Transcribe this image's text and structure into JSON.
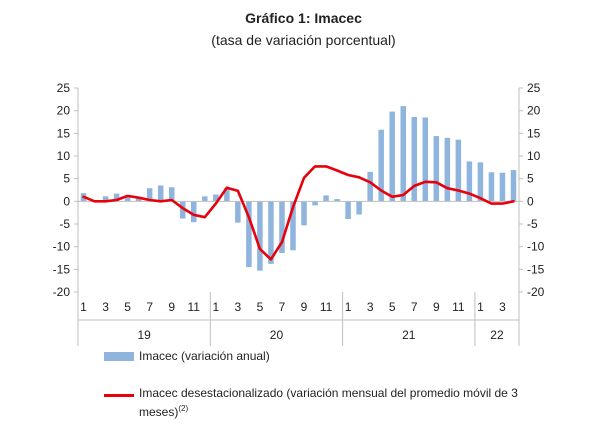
{
  "chart_data": {
    "type": "bar",
    "title": "Gráfico 1: Imacec",
    "subtitle": "(tasa de variación porcentual)",
    "ylim": [
      -20,
      25
    ],
    "yticks": [
      -20,
      -15,
      -10,
      -5,
      0,
      5,
      10,
      15,
      20,
      25
    ],
    "grid": false,
    "categories": [
      "1",
      "2",
      "3",
      "4",
      "5",
      "6",
      "7",
      "8",
      "9",
      "10",
      "11",
      "12",
      "1",
      "2",
      "3",
      "4",
      "5",
      "6",
      "7",
      "8",
      "9",
      "10",
      "11",
      "12",
      "1",
      "2",
      "3",
      "4",
      "5",
      "6",
      "7",
      "8",
      "9",
      "10",
      "11",
      "12",
      "1",
      "2",
      "3",
      "4"
    ],
    "tick_labels": [
      "1",
      "",
      "3",
      "",
      "5",
      "",
      "7",
      "",
      "9",
      "",
      "11",
      "",
      "1",
      "",
      "3",
      "",
      "5",
      "",
      "7",
      "",
      "9",
      "",
      "11",
      "",
      "1",
      "",
      "3",
      "",
      "5",
      "",
      "7",
      "",
      "9",
      "",
      "11",
      "",
      "1",
      "",
      "3",
      ""
    ],
    "year_labels": [
      {
        "label": "19",
        "start": 0,
        "end": 11
      },
      {
        "label": "20",
        "start": 12,
        "end": 23
      },
      {
        "label": "21",
        "start": 24,
        "end": 35
      },
      {
        "label": "22",
        "start": 36,
        "end": 39
      }
    ],
    "series": [
      {
        "name": "Imacec (variación anual)",
        "type": "bar",
        "color": "#8fb4dd",
        "values": [
          1.8,
          0.3,
          1.1,
          1.7,
          1.1,
          1.0,
          2.9,
          3.5,
          3.1,
          -3.8,
          -4.6,
          1.1,
          1.5,
          2.9,
          -4.7,
          -14.5,
          -15.3,
          -13.8,
          -11.4,
          -10.8,
          -5.3,
          -0.9,
          1.3,
          0.5,
          -3.9,
          -2.9,
          6.5,
          15.8,
          19.8,
          21.0,
          18.6,
          18.5,
          14.4,
          14.0,
          13.6,
          8.8,
          8.6,
          6.4,
          6.3,
          6.9
        ]
      },
      {
        "name": "Imacec desestacionalizado (variación mensual del promedio móvil de 3 meses)",
        "name_superscript": "(2)",
        "type": "line",
        "color": "#e8000b",
        "values": [
          1.0,
          0.0,
          0.0,
          0.3,
          1.2,
          0.8,
          0.3,
          0.0,
          0.3,
          -1.5,
          -3.0,
          -3.5,
          -0.5,
          3.0,
          2.3,
          -3.5,
          -10.5,
          -12.8,
          -9.0,
          -1.3,
          5.2,
          7.7,
          7.7,
          6.8,
          5.8,
          5.3,
          4.2,
          2.4,
          1.0,
          1.4,
          3.4,
          4.3,
          4.2,
          2.9,
          2.4,
          1.7,
          0.7,
          -0.5,
          -0.5,
          0.0
        ]
      }
    ]
  },
  "legend": {
    "bar_label": "Imacec (variación anual)",
    "line_label_line1": "Imacec desestacionalizado (variación mensual del promedio móvil de 3",
    "line_label_line2": "meses)",
    "line_label_sup": "(2)"
  }
}
